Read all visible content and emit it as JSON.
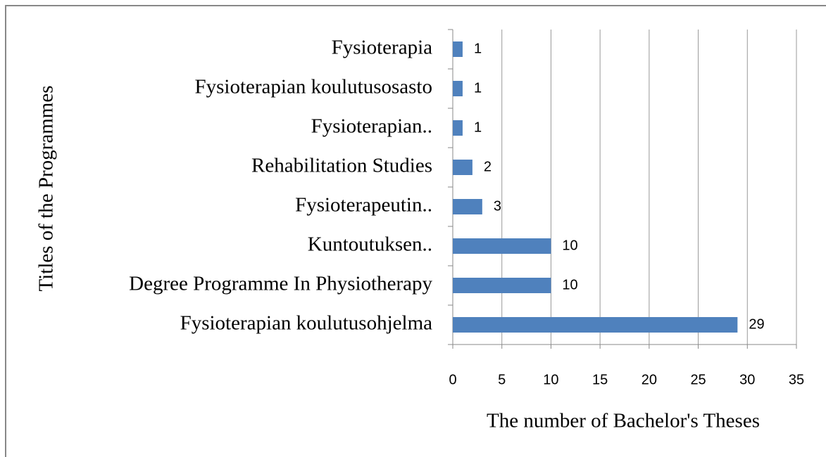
{
  "chart_data": {
    "type": "bar",
    "orientation": "horizontal",
    "x_label": "The number of Bachelor's Theses",
    "y_label": "Titles of the Programmes",
    "categories": [
      "Fysioterapia",
      "Fysioterapian koulutusosasto",
      "Fysioterapian..",
      "Rehabilitation Studies",
      "Fysioterapeutin..",
      "Kuntoutuksen..",
      "Degree Programme In Physiotherapy",
      "Fysioterapian koulutusohjelma"
    ],
    "values": [
      1,
      1,
      1,
      2,
      3,
      10,
      10,
      29
    ],
    "color": "#4f81bd",
    "xlim": [
      0,
      35
    ],
    "xticks": [
      0,
      5,
      10,
      15,
      20,
      25,
      30,
      35
    ],
    "grid": true
  }
}
